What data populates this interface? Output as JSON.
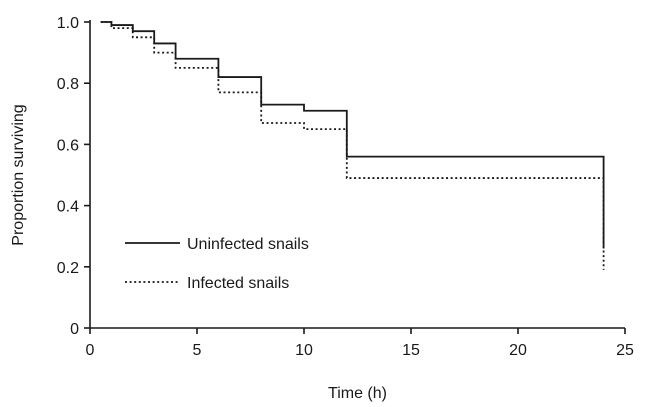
{
  "chart_data": {
    "type": "line",
    "title": "",
    "xlabel": "Time (h)",
    "ylabel": "Proportion surviving",
    "xlim": [
      0,
      25
    ],
    "ylim": [
      0,
      1.0
    ],
    "x_ticks": [
      0,
      5,
      10,
      15,
      20,
      25
    ],
    "y_ticks": [
      0,
      0.2,
      0.4,
      0.6,
      0.8,
      1.0
    ],
    "x_tick_labels": [
      "0",
      "5",
      "10",
      "15",
      "20",
      "25"
    ],
    "y_tick_labels": [
      "0",
      "0.2",
      "0.4",
      "0.6",
      "0.8",
      "1.0"
    ],
    "grid": false,
    "legend_position": "lower-left",
    "series": [
      {
        "name": "Uninfected snails",
        "style": "solid",
        "color": "#1a1a1a",
        "x": [
          0.5,
          1,
          2,
          3,
          4,
          6,
          8,
          10,
          12,
          24,
          24
        ],
        "y": [
          1.0,
          0.99,
          0.97,
          0.93,
          0.88,
          0.82,
          0.73,
          0.71,
          0.56,
          0.56,
          0.26
        ]
      },
      {
        "name": "Infected snails",
        "style": "dotted",
        "color": "#1a1a1a",
        "x": [
          0.5,
          1,
          2,
          3,
          4,
          6,
          8,
          10,
          12,
          24,
          24
        ],
        "y": [
          1.0,
          0.98,
          0.95,
          0.9,
          0.85,
          0.77,
          0.67,
          0.65,
          0.49,
          0.49,
          0.19
        ]
      }
    ]
  }
}
